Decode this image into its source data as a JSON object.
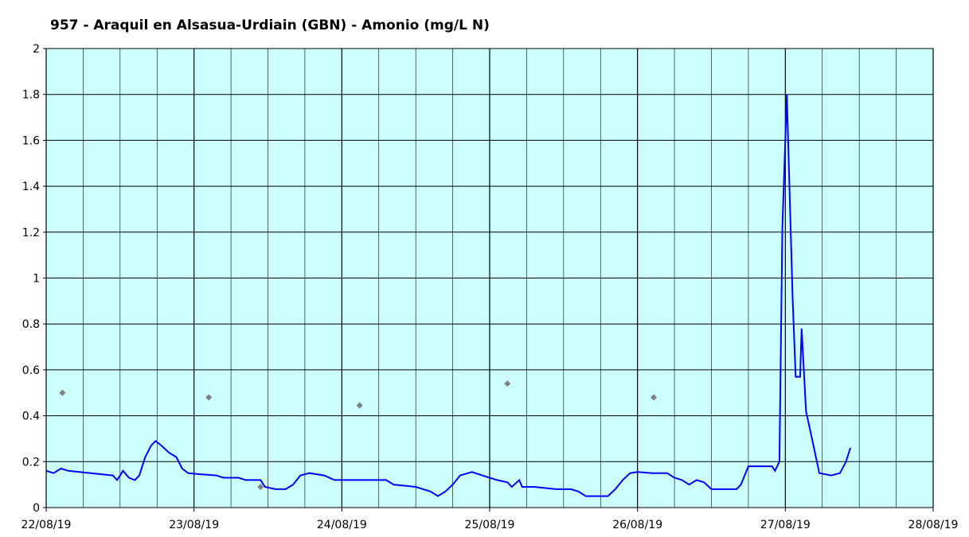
{
  "chart_data": {
    "type": "line",
    "title": "957 - Araquil en Alsasua-Urdiain (GBN) - Amonio (mg/L N)",
    "xlim": [
      0,
      6
    ],
    "xticks": [
      {
        "value": 0,
        "label": "22/08/19"
      },
      {
        "value": 1,
        "label": "23/08/19"
      },
      {
        "value": 2,
        "label": "24/08/19"
      },
      {
        "value": 3,
        "label": "25/08/19"
      },
      {
        "value": 4,
        "label": "26/08/19"
      },
      {
        "value": 5,
        "label": "27/08/19"
      },
      {
        "value": 6,
        "label": "28/08/19"
      }
    ],
    "ylim": [
      0,
      2
    ],
    "yticks": [
      0,
      0.2,
      0.4,
      0.6,
      0.8,
      1,
      1.2,
      1.4,
      1.6,
      1.8,
      2
    ],
    "grid": true,
    "series": [
      {
        "color": "#0000ff",
        "x": [
          0,
          0.05,
          0.1,
          0.15,
          0.3,
          0.45,
          0.48,
          0.52,
          0.56,
          0.6,
          0.63,
          0.67,
          0.71,
          0.74,
          0.78,
          0.83,
          0.88,
          0.92,
          0.96,
          1.05,
          1.15,
          1.2,
          1.3,
          1.35,
          1.45,
          1.48,
          1.55,
          1.62,
          1.67,
          1.72,
          1.78,
          1.88,
          1.95,
          2.1,
          2.2,
          2.3,
          2.35,
          2.5,
          2.6,
          2.65,
          2.7,
          2.75,
          2.8,
          2.88,
          2.95,
          3.0,
          3.05,
          3.12,
          3.15,
          3.2,
          3.22,
          3.3,
          3.45,
          3.55,
          3.6,
          3.65,
          3.8,
          3.85,
          3.9,
          3.95,
          4.0,
          4.1,
          4.2,
          4.25,
          4.3,
          4.35,
          4.4,
          4.45,
          4.5,
          4.67,
          4.7,
          4.75,
          4.91,
          4.93,
          4.96,
          4.98,
          5.01,
          5.03,
          5.05,
          5.07,
          5.1,
          5.11,
          5.14,
          5.18,
          5.22,
          5.23,
          5.31,
          5.37,
          5.41,
          5.44
        ],
        "values": [
          0.16,
          0.15,
          0.17,
          0.16,
          0.15,
          0.14,
          0.12,
          0.16,
          0.13,
          0.12,
          0.14,
          0.22,
          0.27,
          0.29,
          0.27,
          0.24,
          0.22,
          0.17,
          0.15,
          0.145,
          0.14,
          0.13,
          0.13,
          0.12,
          0.12,
          0.09,
          0.08,
          0.08,
          0.1,
          0.14,
          0.15,
          0.14,
          0.12,
          0.12,
          0.12,
          0.12,
          0.1,
          0.09,
          0.07,
          0.05,
          0.07,
          0.1,
          0.14,
          0.155,
          0.14,
          0.13,
          0.12,
          0.11,
          0.09,
          0.12,
          0.09,
          0.09,
          0.08,
          0.08,
          0.07,
          0.05,
          0.05,
          0.08,
          0.12,
          0.15,
          0.155,
          0.15,
          0.15,
          0.13,
          0.12,
          0.1,
          0.12,
          0.11,
          0.08,
          0.08,
          0.1,
          0.18,
          0.18,
          0.16,
          0.2,
          1.22,
          1.8,
          1.35,
          0.9,
          0.57,
          0.57,
          0.78,
          0.42,
          0.3,
          0.18,
          0.15,
          0.14,
          0.15,
          0.2,
          0.26
        ]
      },
      {
        "type": "scatter",
        "color": "#808080",
        "x": [
          0.11,
          1.1,
          1.45,
          2.12,
          3.12,
          4.11
        ],
        "values": [
          0.5,
          0.48,
          0.09,
          0.445,
          0.54,
          0.48
        ]
      }
    ]
  }
}
